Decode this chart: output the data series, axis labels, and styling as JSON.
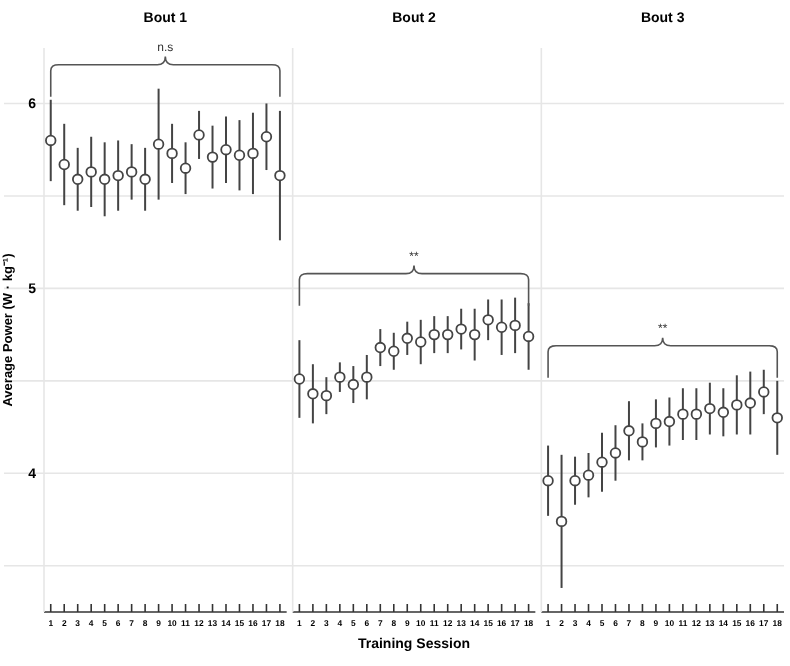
{
  "chart_data": [
    {
      "type": "scatter",
      "title": "Bout 1",
      "ylabel": "Average Power (W · kg⁻¹)",
      "x": [
        1,
        2,
        3,
        4,
        5,
        6,
        7,
        8,
        9,
        10,
        11,
        12,
        13,
        14,
        15,
        16,
        17,
        18
      ],
      "xlim": [
        0.5,
        18.5
      ],
      "xticks": [
        1,
        2,
        3,
        4,
        5,
        6,
        7,
        8,
        9,
        10,
        11,
        12,
        13,
        14,
        15,
        16,
        17,
        18
      ],
      "ylim": [
        3.25,
        6.3
      ],
      "yticks": [
        {
          "value": 3.5,
          "label": null
        },
        4,
        {
          "value": 4.5,
          "label": null
        },
        5,
        {
          "value": 5.5,
          "label": null
        },
        6
      ],
      "grid": "y",
      "marker": "circle",
      "annotations": [
        "n.s"
      ],
      "series": [
        {
          "color": "#444444",
          "values": [
            5.8,
            5.67,
            5.59,
            5.63,
            5.59,
            5.61,
            5.63,
            5.59,
            5.78,
            5.73,
            5.65,
            5.83,
            5.71,
            5.75,
            5.72,
            5.73,
            5.82,
            5.61
          ],
          "errors": [
            0.22,
            0.22,
            0.17,
            0.19,
            0.2,
            0.19,
            0.15,
            0.17,
            0.3,
            0.16,
            0.14,
            0.13,
            0.17,
            0.18,
            0.19,
            0.22,
            0.18,
            0.35
          ]
        }
      ]
    },
    {
      "type": "scatter",
      "title": "Bout 2",
      "xlabel": "Training Session",
      "x": [
        1,
        2,
        3,
        4,
        5,
        6,
        7,
        8,
        9,
        10,
        11,
        12,
        13,
        14,
        15,
        16,
        17,
        18
      ],
      "xlim": [
        0.5,
        18.5
      ],
      "xticks": [
        1,
        2,
        3,
        4,
        5,
        6,
        7,
        8,
        9,
        10,
        11,
        12,
        13,
        14,
        15,
        16,
        17,
        18
      ],
      "ylim": [
        3.25,
        6.3
      ],
      "yticks": [
        {
          "value": 3.5,
          "label": null
        },
        4,
        {
          "value": 4.5,
          "label": null
        },
        5,
        {
          "value": 5.5,
          "label": null
        },
        6
      ],
      "tick_labels": "x",
      "grid": "y",
      "marker": "circle",
      "annotations": [
        "**"
      ],
      "series": [
        {
          "color": "#444444",
          "values": [
            4.51,
            4.43,
            4.42,
            4.52,
            4.48,
            4.52,
            4.68,
            4.66,
            4.73,
            4.71,
            4.75,
            4.75,
            4.78,
            4.75,
            4.83,
            4.79,
            4.8,
            4.74
          ],
          "errors": [
            0.21,
            0.16,
            0.1,
            0.08,
            0.1,
            0.12,
            0.1,
            0.1,
            0.09,
            0.12,
            0.1,
            0.1,
            0.11,
            0.14,
            0.11,
            0.15,
            0.15,
            0.18
          ]
        }
      ]
    },
    {
      "type": "scatter",
      "title": "Bout 3",
      "x": [
        1,
        2,
        3,
        4,
        5,
        6,
        7,
        8,
        9,
        10,
        11,
        12,
        13,
        14,
        15,
        16,
        17,
        18
      ],
      "xlim": [
        0.5,
        18.5
      ],
      "xticks": [
        1,
        2,
        3,
        4,
        5,
        6,
        7,
        8,
        9,
        10,
        11,
        12,
        13,
        14,
        15,
        16,
        17,
        18
      ],
      "ylim": [
        3.25,
        6.3
      ],
      "yticks": [
        {
          "value": 3.5,
          "label": null
        },
        4,
        {
          "value": 4.5,
          "label": null
        },
        5,
        {
          "value": 5.5,
          "label": null
        },
        6
      ],
      "tick_labels": "x",
      "grid": "y",
      "marker": "circle",
      "annotations": [
        "**"
      ],
      "series": [
        {
          "color": "#444444",
          "values": [
            3.96,
            3.74,
            3.96,
            3.99,
            4.06,
            4.11,
            4.23,
            4.17,
            4.27,
            4.28,
            4.32,
            4.32,
            4.35,
            4.33,
            4.37,
            4.38,
            4.44,
            4.3
          ],
          "errors": [
            0.19,
            0.36,
            0.13,
            0.12,
            0.16,
            0.15,
            0.16,
            0.1,
            0.13,
            0.13,
            0.14,
            0.14,
            0.14,
            0.13,
            0.16,
            0.17,
            0.12,
            0.2
          ]
        }
      ]
    }
  ]
}
